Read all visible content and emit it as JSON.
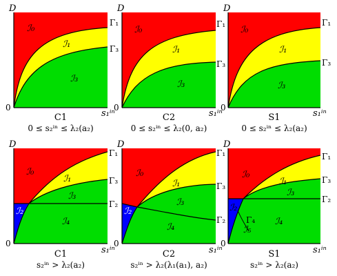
{
  "axis_labels": {
    "y": "D",
    "x": "s₁ⁱⁿ",
    "origin": "0"
  },
  "colors": {
    "red": "#ff0000",
    "yellow": "#ffff00",
    "green": "#00dd00",
    "blue": "#0000ff"
  },
  "panels": [
    {
      "title": "C1",
      "condition": "0 ≤ s₂ⁱⁿ ≤ λ₂(a₂)",
      "regions": [
        "ℐ₀",
        "ℐ₁",
        "ℐ₃"
      ],
      "curves": [
        "Γ₁",
        "Γ₃"
      ]
    },
    {
      "title": "C2",
      "condition": "0 ≤ s₂ⁱⁿ ≤ λ₂(0, a₂)",
      "regions": [
        "ℐ₀",
        "ℐ₁",
        "ℐ₃"
      ],
      "curves": [
        "Γ₁",
        "Γ₃"
      ]
    },
    {
      "title": "S1",
      "condition": "0 ≤ s₂ⁱⁿ ≤ λ₂(a₂)",
      "regions": [
        "ℐ₀",
        "ℐ₁",
        "ℐ₃"
      ],
      "curves": [
        "Γ₁",
        "Γ₃"
      ]
    },
    {
      "title": "C1",
      "condition": "s₂ⁱⁿ > λ₂(a₂)",
      "regions": [
        "ℐ₀",
        "ℐ₁",
        "ℐ₃",
        "ℐ₂",
        "ℐ₄"
      ],
      "curves": [
        "Γ₁",
        "Γ₃",
        "Γ₂"
      ]
    },
    {
      "title": "C2",
      "condition": "s₂ⁱⁿ > λ₂(λ₁(a₁), a₂)",
      "regions": [
        "ℐ₀",
        "ℐ₁",
        "ℐ₃",
        "ℐ₂",
        "ℐ₄"
      ],
      "curves": [
        "Γ₁",
        "Γ₃",
        "Γ₂"
      ]
    },
    {
      "title": "S1",
      "condition": "s₂ⁱⁿ > λ₂(a₂)",
      "regions": [
        "ℐ₀",
        "ℐ₁",
        "ℐ₃",
        "ℐ₂",
        "ℐ₄",
        "ℐ₅"
      ],
      "curves": [
        "Γ₁",
        "Γ₃",
        "Γ₂",
        "Γ₄"
      ]
    }
  ]
}
